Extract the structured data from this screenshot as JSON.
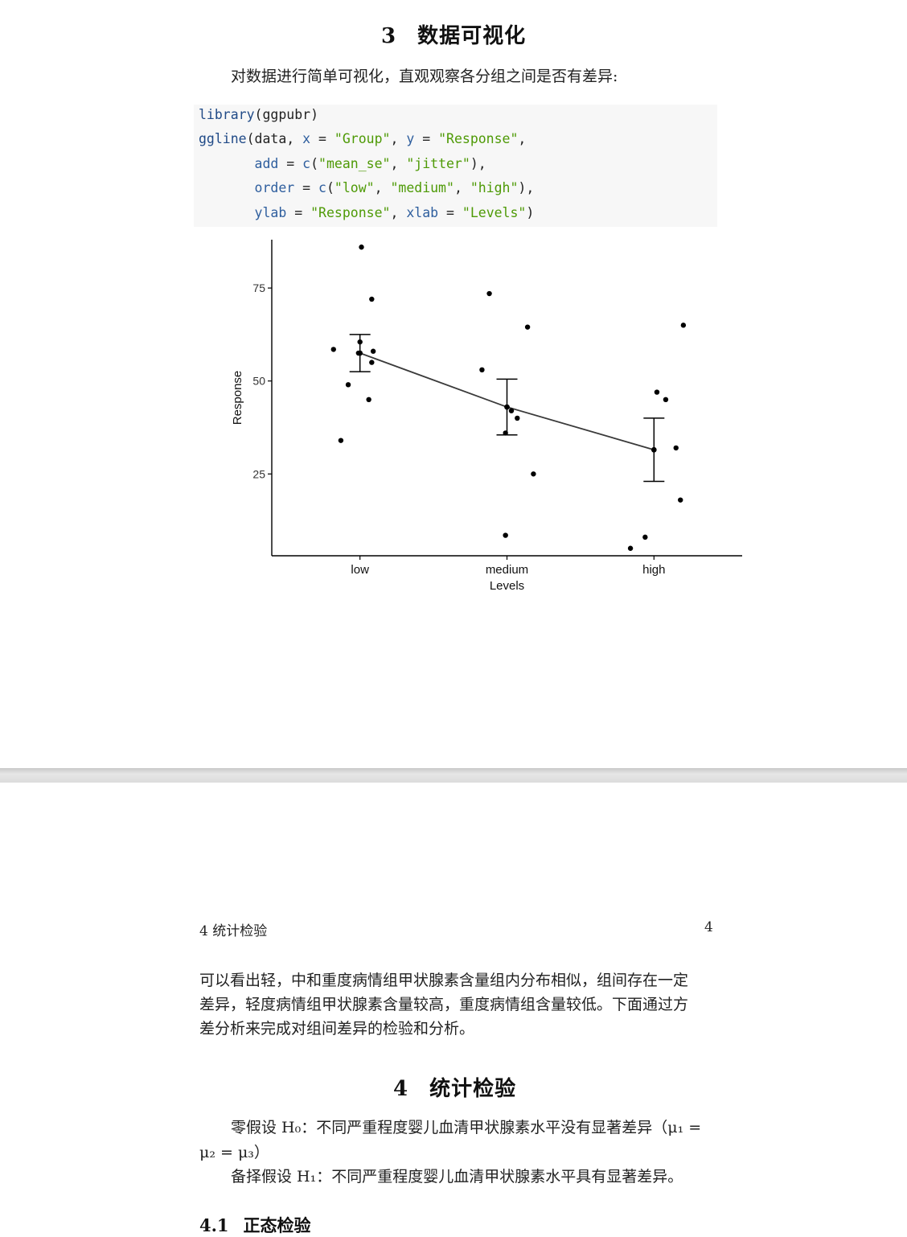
{
  "section3": {
    "number": "3",
    "title": "数据可视化"
  },
  "intro_text": "对数据进行简单可视化，直观观察各分组之间是否有差异:",
  "code": {
    "l1_fn": "library",
    "l1_rest": "(ggpubr)",
    "l2_fn": "ggline",
    "l2_a": "(data, ",
    "l2_x": "x",
    "l2_eq1": " = ",
    "l2_xv": "\"Group\"",
    "l2_c": ", ",
    "l2_y": "y",
    "l2_eq2": " = ",
    "l2_yv": "\"Response\"",
    "l2_end": ",",
    "l3_pre": "       ",
    "l3_k": "add",
    "l3_eq": " = ",
    "l3_c": "c",
    "l3_p": "(",
    "l3_s1": "\"mean_se\"",
    "l3_cm": ", ",
    "l3_s2": "\"jitter\"",
    "l3_end": "),",
    "l4_pre": "       ",
    "l4_k": "order",
    "l4_eq": " = ",
    "l4_c": "c",
    "l4_p": "(",
    "l4_s1": "\"low\"",
    "l4_cm1": ", ",
    "l4_s2": "\"medium\"",
    "l4_cm2": ", ",
    "l4_s3": "\"high\"",
    "l4_end": "),",
    "l5_pre": "       ",
    "l5_k": "ylab",
    "l5_eq": " = ",
    "l5_s1": "\"Response\"",
    "l5_cm": ", ",
    "l5_k2": "xlab",
    "l5_eq2": " = ",
    "l5_s2": "\"Levels\"",
    "l5_end": ")"
  },
  "chart_data": {
    "type": "line",
    "categories": [
      "low",
      "medium",
      "high"
    ],
    "xlabel": "Levels",
    "ylabel": "Response",
    "ylim": [
      3,
      88
    ],
    "yticks": [
      25,
      50,
      75
    ],
    "means": [
      57.5,
      43,
      31.5
    ],
    "se_upper": [
      62.5,
      50.5,
      40
    ],
    "se_lower": [
      52.5,
      35.5,
      23
    ],
    "jitter_points": [
      {
        "x": 0.82,
        "y": 58.5
      },
      {
        "x": 1.01,
        "y": 86
      },
      {
        "x": 1.08,
        "y": 72
      },
      {
        "x": 1.0,
        "y": 60.5
      },
      {
        "x": 0.99,
        "y": 57.5
      },
      {
        "x": 1.08,
        "y": 55
      },
      {
        "x": 1.09,
        "y": 58
      },
      {
        "x": 1.06,
        "y": 45
      },
      {
        "x": 0.92,
        "y": 49
      },
      {
        "x": 0.87,
        "y": 34
      },
      {
        "x": 1.88,
        "y": 73.5
      },
      {
        "x": 1.83,
        "y": 53
      },
      {
        "x": 2.14,
        "y": 64.5
      },
      {
        "x": 2.0,
        "y": 43
      },
      {
        "x": 2.03,
        "y": 42
      },
      {
        "x": 2.07,
        "y": 40
      },
      {
        "x": 1.99,
        "y": 36
      },
      {
        "x": 2.18,
        "y": 25
      },
      {
        "x": 1.99,
        "y": 8.5
      },
      {
        "x": 3.02,
        "y": 47
      },
      {
        "x": 3.08,
        "y": 45
      },
      {
        "x": 3.2,
        "y": 65
      },
      {
        "x": 3.15,
        "y": 32
      },
      {
        "x": 3.18,
        "y": 18
      },
      {
        "x": 2.94,
        "y": 8
      },
      {
        "x": 2.84,
        "y": 5
      },
      {
        "x": 3.0,
        "y": 31.5
      }
    ],
    "grid": false,
    "colors": {
      "line": "#3a3a3a",
      "points": "#000000"
    }
  },
  "page2": {
    "running_head_left": "4   统计检验",
    "running_head_right": "4",
    "para1": [
      "可以看出轻，中和重度病情组甲状腺素含量组内分布相似，组间存在一定",
      "差异，轻度病情组甲状腺素含量较高，重度病情组含量较低。下面通过方",
      "差分析来完成对组间差异的检验和分析。"
    ],
    "section4": {
      "number": "4",
      "title": "统计检验"
    },
    "h0_line1": "零假设 H₀：不同严重程度婴儿血清甲状腺素水平没有显著差异（μ₁ =",
    "h0_line2": "μ₂ = μ₃）",
    "h1_line": "备择假设 H₁：不同严重程度婴儿血清甲状腺素水平具有显著差异。",
    "subsection": {
      "number": "4.1",
      "title": "正态检验"
    }
  }
}
